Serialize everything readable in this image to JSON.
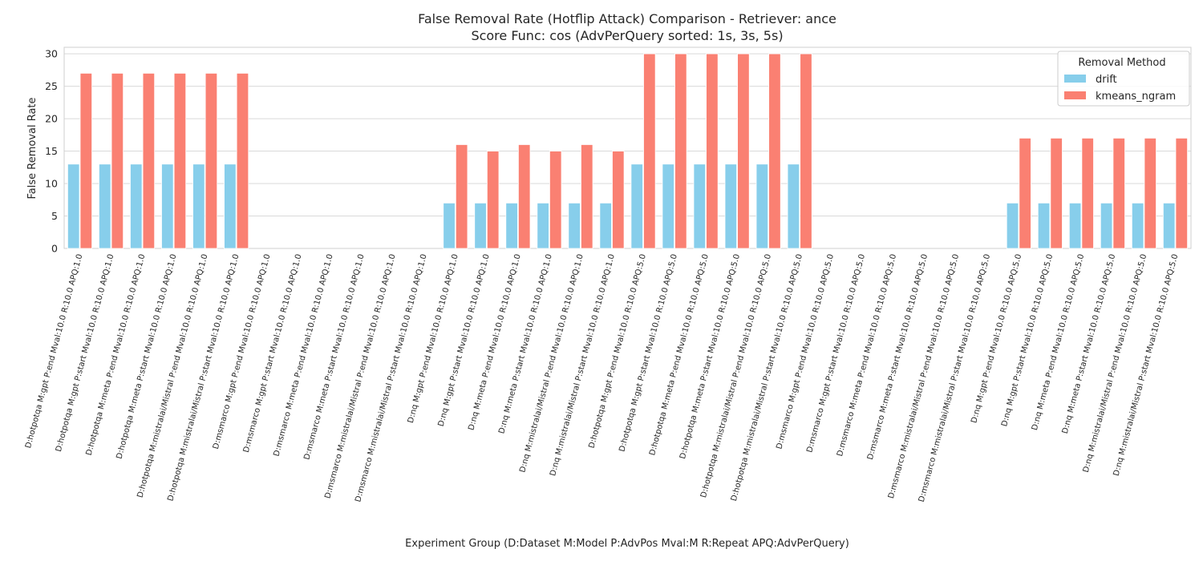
{
  "chart_data": {
    "type": "bar",
    "title_line1": "False Removal Rate (Hotflip Attack) Comparison - Retriever: ance",
    "title_line2": "Score Func: cos (AdvPerQuery sorted: 1s, 3s, 5s)",
    "xlabel": "Experiment Group (D:Dataset M:Model P:AdvPos Mval:M R:Repeat APQ:AdvPerQuery)",
    "ylabel": "False Removal Rate",
    "ylim": [
      0,
      31
    ],
    "yticks": [
      0,
      5,
      10,
      15,
      20,
      25,
      30
    ],
    "grid": true,
    "legend": {
      "title": "Removal Method",
      "position": "top-right"
    },
    "categories": [
      "D:hotpotqa M:gpt P:end Mval:10.0 R:10.0 APQ:1.0",
      "D:hotpotqa M:gpt P:start Mval:10.0 R:10.0 APQ:1.0",
      "D:hotpotqa M:meta P:end Mval:10.0 R:10.0 APQ:1.0",
      "D:hotpotqa M:meta P:start Mval:10.0 R:10.0 APQ:1.0",
      "D:hotpotqa M:mistralai/Mistral P:end Mval:10.0 R:10.0 APQ:1.0",
      "D:hotpotqa M:mistralai/Mistral P:start Mval:10.0 R:10.0 APQ:1.0",
      "D:msmarco M:gpt P:end Mval:10.0 R:10.0 APQ:1.0",
      "D:msmarco M:gpt P:start Mval:10.0 R:10.0 APQ:1.0",
      "D:msmarco M:meta P:end Mval:10.0 R:10.0 APQ:1.0",
      "D:msmarco M:meta P:start Mval:10.0 R:10.0 APQ:1.0",
      "D:msmarco M:mistralai/Mistral P:end Mval:10.0 R:10.0 APQ:1.0",
      "D:msmarco M:mistralai/Mistral P:start Mval:10.0 R:10.0 APQ:1.0",
      "D:nq M:gpt P:end Mval:10.0 R:10.0 APQ:1.0",
      "D:nq M:gpt P:start Mval:10.0 R:10.0 APQ:1.0",
      "D:nq M:meta P:end Mval:10.0 R:10.0 APQ:1.0",
      "D:nq M:meta P:start Mval:10.0 R:10.0 APQ:1.0",
      "D:nq M:mistralai/Mistral P:end Mval:10.0 R:10.0 APQ:1.0",
      "D:nq M:mistralai/Mistral P:start Mval:10.0 R:10.0 APQ:1.0",
      "D:hotpotqa M:gpt P:end Mval:10.0 R:10.0 APQ:5.0",
      "D:hotpotqa M:gpt P:start Mval:10.0 R:10.0 APQ:5.0",
      "D:hotpotqa M:meta P:end Mval:10.0 R:10.0 APQ:5.0",
      "D:hotpotqa M:meta P:start Mval:10.0 R:10.0 APQ:5.0",
      "D:hotpotqa M:mistralai/Mistral P:end Mval:10.0 R:10.0 APQ:5.0",
      "D:hotpotqa M:mistralai/Mistral P:start Mval:10.0 R:10.0 APQ:5.0",
      "D:msmarco M:gpt P:end Mval:10.0 R:10.0 APQ:5.0",
      "D:msmarco M:gpt P:start Mval:10.0 R:10.0 APQ:5.0",
      "D:msmarco M:meta P:end Mval:10.0 R:10.0 APQ:5.0",
      "D:msmarco M:meta P:start Mval:10.0 R:10.0 APQ:5.0",
      "D:msmarco M:mistralai/Mistral P:end Mval:10.0 R:10.0 APQ:5.0",
      "D:msmarco M:mistralai/Mistral P:start Mval:10.0 R:10.0 APQ:5.0",
      "D:nq M:gpt P:end Mval:10.0 R:10.0 APQ:5.0",
      "D:nq M:gpt P:start Mval:10.0 R:10.0 APQ:5.0",
      "D:nq M:meta P:end Mval:10.0 R:10.0 APQ:5.0",
      "D:nq M:meta P:start Mval:10.0 R:10.0 APQ:5.0",
      "D:nq M:mistralai/Mistral P:end Mval:10.0 R:10.0 APQ:5.0",
      "D:nq M:mistralai/Mistral P:start Mval:10.0 R:10.0 APQ:5.0"
    ],
    "series": [
      {
        "name": "drift",
        "color": "#87ceeb",
        "values": [
          13,
          13,
          13,
          13,
          13,
          13,
          0,
          0,
          0,
          0,
          0,
          0,
          7,
          7,
          7,
          7,
          7,
          7,
          13,
          13,
          13,
          13,
          13,
          13,
          0,
          0,
          0,
          0,
          0,
          0,
          7,
          7,
          7,
          7,
          7,
          7
        ]
      },
      {
        "name": "kmeans_ngram",
        "color": "#fa8072",
        "values": [
          27,
          27,
          27,
          27,
          27,
          27,
          0,
          0,
          0,
          0,
          0,
          0,
          16,
          15,
          16,
          15,
          16,
          15,
          30,
          30,
          30,
          30,
          30,
          30,
          0,
          0,
          0,
          0,
          0,
          0,
          17,
          17,
          17,
          17,
          17,
          17
        ]
      }
    ]
  }
}
